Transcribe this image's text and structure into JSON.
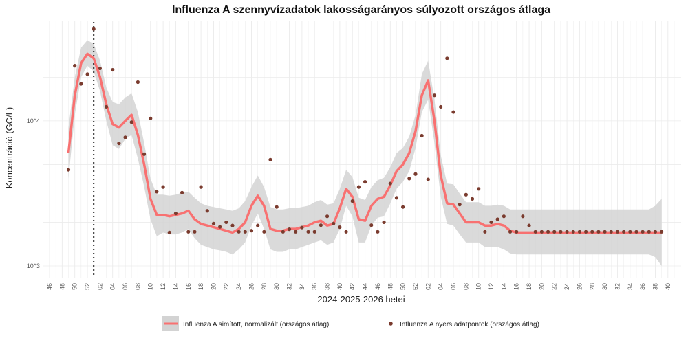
{
  "chart_data": {
    "type": "line",
    "title": "Influenza A szennyvízadatok lakosságarányos súlyozott országos átlaga",
    "xlabel": "2024-2025-2026 hetei",
    "ylabel": "Koncentráció (GC/L)",
    "y_scale": "log10",
    "ylim": [
      1000,
      45000
    ],
    "y_ticks": [
      {
        "label": "10^3",
        "value": 1000
      },
      {
        "label": "10^4",
        "value": 10000
      }
    ],
    "x_tick_labels": [
      "46",
      "48",
      "50",
      "52",
      "02",
      "04",
      "06",
      "08",
      "10",
      "12",
      "14",
      "16",
      "18",
      "20",
      "22",
      "24",
      "26",
      "28",
      "30",
      "32",
      "34",
      "36",
      "38",
      "40",
      "42",
      "44",
      "46",
      "48",
      "50",
      "52",
      "02",
      "04",
      "06",
      "08",
      "10",
      "12",
      "14",
      "16",
      "18",
      "20",
      "22",
      "24",
      "26",
      "28",
      "30",
      "32",
      "34",
      "36",
      "38",
      "40"
    ],
    "x_range_index": [
      0,
      99
    ],
    "vertical_marker": {
      "index": 7,
      "style": "dotted"
    },
    "grid": true,
    "legend_position": "bottom",
    "series": [
      {
        "name": "Influenza A simított, normalizált (országos átlag)",
        "kind": "smoothed_line_with_ci",
        "color": "#f87171",
        "ci_color": "#d3d3d3",
        "x_index": [
          3,
          4,
          5,
          6,
          7,
          8,
          9,
          10,
          11,
          12,
          13,
          14,
          15,
          16,
          17,
          18,
          19,
          20,
          21,
          22,
          23,
          24,
          25,
          26,
          27,
          28,
          29,
          30,
          31,
          32,
          33,
          34,
          35,
          36,
          37,
          38,
          39,
          40,
          41,
          42,
          43,
          44,
          45,
          46,
          47,
          48,
          49,
          50,
          51,
          52,
          53,
          54,
          55,
          56,
          57,
          58,
          59,
          60,
          61,
          62,
          63,
          64,
          65,
          66,
          67,
          68,
          69,
          70,
          71,
          72,
          73,
          74,
          75,
          76,
          77,
          78,
          79,
          80,
          81,
          82,
          83,
          84,
          85,
          86,
          87,
          88,
          89,
          90,
          91,
          92,
          93,
          94,
          95,
          96,
          97
        ],
        "values": [
          6000,
          15000,
          25000,
          29000,
          27000,
          20000,
          13000,
          9500,
          9000,
          10000,
          11000,
          8000,
          5000,
          2900,
          2250,
          2250,
          2200,
          2250,
          2300,
          2400,
          2100,
          1950,
          1900,
          1850,
          1800,
          1750,
          1700,
          1800,
          2000,
          2600,
          3050,
          2600,
          1800,
          1750,
          1750,
          1800,
          1800,
          1850,
          1900,
          2000,
          2050,
          1900,
          1950,
          2500,
          3400,
          3000,
          2100,
          2050,
          2600,
          2900,
          3000,
          3600,
          4500,
          5000,
          6000,
          8500,
          15000,
          19000,
          10000,
          4200,
          2700,
          2650,
          2300,
          2000,
          2000,
          2000,
          1900,
          1900,
          1950,
          1900,
          1750,
          1700,
          1700,
          1700,
          1700,
          1700,
          1700,
          1700,
          1700,
          1700,
          1700,
          1700,
          1700,
          1700,
          1700,
          1700,
          1700,
          1700,
          1700,
          1700,
          1700,
          1700,
          1700,
          1700,
          1700
        ],
        "ci_lower": [
          4000,
          11000,
          20000,
          24000,
          22000,
          16000,
          10000,
          6800,
          6400,
          7500,
          8000,
          5500,
          3500,
          2100,
          1600,
          1700,
          1650,
          1650,
          1700,
          1800,
          1550,
          1400,
          1350,
          1300,
          1280,
          1250,
          1200,
          1300,
          1450,
          1900,
          2300,
          1800,
          1300,
          1250,
          1250,
          1300,
          1300,
          1350,
          1400,
          1450,
          1500,
          1400,
          1450,
          1800,
          2600,
          2200,
          1450,
          1450,
          1900,
          2150,
          2200,
          2700,
          3400,
          3800,
          4500,
          6500,
          11500,
          14000,
          7000,
          3000,
          1950,
          1900,
          1650,
          1450,
          1450,
          1450,
          1350,
          1350,
          1350,
          1300,
          1220,
          1200,
          1200,
          1200,
          1200,
          1200,
          1200,
          1200,
          1200,
          1200,
          1200,
          1200,
          1200,
          1200,
          1200,
          1200,
          1200,
          1200,
          1200,
          1200,
          1200,
          1200,
          1200,
          1150,
          1000
        ],
        "ci_upper": [
          9000,
          20000,
          32000,
          36000,
          34000,
          26000,
          17000,
          13500,
          13000,
          14500,
          15500,
          11500,
          7000,
          4000,
          3100,
          3100,
          3050,
          3100,
          3200,
          3250,
          2950,
          2700,
          2600,
          2550,
          2500,
          2450,
          2400,
          2500,
          2800,
          3500,
          4200,
          3500,
          2550,
          2450,
          2450,
          2500,
          2500,
          2550,
          2600,
          2750,
          2850,
          2650,
          2700,
          3400,
          4600,
          4100,
          2950,
          2850,
          3500,
          3900,
          4050,
          4800,
          6000,
          6500,
          7800,
          11000,
          21000,
          26000,
          14000,
          5800,
          3700,
          3650,
          3150,
          2750,
          2750,
          2750,
          2600,
          2600,
          2650,
          2600,
          2450,
          2450,
          2450,
          2450,
          2450,
          2450,
          2450,
          2450,
          2450,
          2450,
          2450,
          2450,
          2450,
          2450,
          2450,
          2450,
          2450,
          2450,
          2450,
          2450,
          2450,
          2450,
          2450,
          2600,
          2900
        ]
      },
      {
        "name": "Influenza A nyers adatpontok (országos átlag)",
        "kind": "scatter",
        "color": "#7a3b2e",
        "x_index": [
          3,
          4,
          5,
          6,
          7,
          8,
          9,
          10,
          11,
          12,
          13,
          14,
          15,
          16,
          17,
          18,
          19,
          20,
          21,
          22,
          23,
          24,
          25,
          26,
          27,
          28,
          29,
          30,
          31,
          32,
          33,
          34,
          35,
          36,
          37,
          38,
          39,
          40,
          41,
          42,
          43,
          44,
          45,
          46,
          47,
          48,
          49,
          50,
          51,
          52,
          53,
          54,
          55,
          56,
          57,
          58,
          59,
          60,
          61,
          62,
          63,
          64,
          65,
          66,
          67,
          68,
          69,
          70,
          71,
          72,
          73,
          74,
          75,
          76,
          77,
          78,
          79,
          80,
          81,
          82,
          83,
          84,
          85,
          86,
          87,
          88,
          89,
          90,
          91,
          92,
          93,
          94,
          95,
          96,
          97
        ],
        "values": [
          4600,
          24000,
          18000,
          21000,
          43000,
          23000,
          12500,
          22500,
          7000,
          7700,
          9800,
          18500,
          5900,
          10400,
          3250,
          3500,
          1700,
          2300,
          3200,
          1720,
          1720,
          3500,
          2400,
          1960,
          1860,
          2000,
          1900,
          1720,
          1720,
          1750,
          1900,
          1720,
          5400,
          2550,
          1720,
          1790,
          1720,
          1840,
          1720,
          1720,
          1910,
          2200,
          1960,
          1850,
          1720,
          2800,
          3500,
          3800,
          1910,
          1720,
          2000,
          3700,
          2950,
          2550,
          4000,
          4300,
          7900,
          3950,
          15000,
          12500,
          27000,
          11500,
          2650,
          3100,
          2900,
          3400,
          1720,
          2000,
          2100,
          2200,
          1720,
          1720,
          2200,
          1900,
          1720,
          1720,
          1720,
          1720,
          1720,
          1720,
          1720,
          1720,
          1720,
          1720,
          1720,
          1720,
          1720,
          1720,
          1720,
          1720,
          1720,
          1720,
          1720,
          1720,
          1720
        ]
      }
    ]
  }
}
